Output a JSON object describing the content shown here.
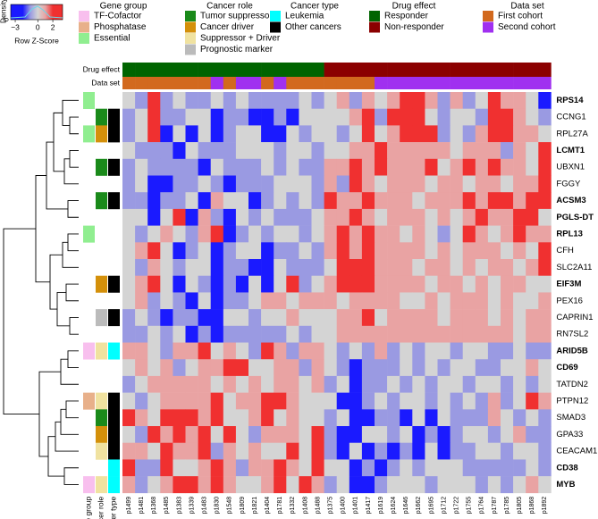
{
  "chart_data": {
    "type": "heatmap",
    "rows": [
      "RPS14",
      "CCNG1",
      "RPL27A",
      "LCMT1",
      "UBXN1",
      "FGGY",
      "ACSM3",
      "PGLS-DT",
      "RPL13",
      "CFH",
      "SLC2A11",
      "EIF3M",
      "PEX16",
      "CAPRIN1",
      "RN7SL2",
      "ARID5B",
      "CD69",
      "TATDN2",
      "PTPN12",
      "SMAD3",
      "GPA33",
      "CEACAM1",
      "CD38",
      "MYB"
    ],
    "row_bold": [
      true,
      false,
      false,
      true,
      false,
      false,
      true,
      true,
      true,
      false,
      false,
      true,
      false,
      false,
      false,
      true,
      true,
      false,
      false,
      false,
      false,
      false,
      true,
      true
    ],
    "columns": [
      "p1499",
      "p1481",
      "p1368",
      "p1485",
      "p1383",
      "p1339",
      "p1483",
      "p1830",
      "p1548",
      "p1809",
      "p1821",
      "p1404",
      "p1781",
      "p1332",
      "p1408",
      "p1488",
      "p1375",
      "p1400",
      "p1401",
      "p1417",
      "p1619",
      "p1624",
      "p1646",
      "p1662",
      "p1695",
      "p1712",
      "p1722",
      "p1755",
      "p1764",
      "p1787",
      "p1785",
      "p1805",
      "p1868",
      "p1892"
    ],
    "values": [
      [
        0,
        -1,
        2,
        -1,
        0,
        -1,
        -1,
        0,
        -1,
        0,
        -1,
        -1,
        -1,
        -1,
        0,
        -1,
        0,
        1,
        -1,
        1,
        0,
        1,
        2,
        2,
        1,
        -1,
        1,
        -1,
        0,
        2,
        1,
        1,
        0,
        -2
      ],
      [
        -1,
        0,
        2,
        -1,
        -1,
        0,
        0,
        -2,
        -1,
        -1,
        -2,
        -2,
        -1,
        -2,
        0,
        0,
        0,
        0,
        1,
        2,
        -1,
        2,
        2,
        2,
        0,
        -1,
        0,
        0,
        -1,
        2,
        2,
        1,
        0,
        -1
      ],
      [
        -1,
        0,
        2,
        -2,
        0,
        -2,
        0,
        -2,
        -1,
        0,
        0,
        -2,
        -2,
        0,
        -1,
        0,
        0,
        -1,
        0,
        2,
        0,
        1,
        2,
        2,
        2,
        -1,
        0,
        -1,
        1,
        2,
        2,
        1,
        1,
        0
      ],
      [
        0,
        -1,
        -1,
        -1,
        -2,
        0,
        -1,
        -1,
        -1,
        0,
        0,
        0,
        -1,
        0,
        0,
        -1,
        0,
        0,
        1,
        1,
        2,
        1,
        1,
        1,
        1,
        1,
        0,
        1,
        1,
        1,
        -1,
        1,
        0,
        2
      ],
      [
        -1,
        0,
        -1,
        -1,
        -1,
        -1,
        -2,
        0,
        -1,
        -1,
        -1,
        0,
        -1,
        0,
        -1,
        -1,
        1,
        1,
        2,
        1,
        2,
        1,
        1,
        1,
        2,
        0,
        1,
        2,
        1,
        2,
        1,
        1,
        0,
        2
      ],
      [
        -1,
        0,
        -2,
        -2,
        -1,
        -1,
        0,
        -1,
        -2,
        -1,
        -1,
        -1,
        0,
        0,
        0,
        -1,
        1,
        -1,
        2,
        1,
        0,
        1,
        1,
        1,
        0,
        1,
        1,
        0,
        1,
        1,
        0,
        1,
        1,
        2
      ],
      [
        -1,
        -1,
        -2,
        -1,
        -1,
        0,
        -2,
        1,
        0,
        0,
        -2,
        -1,
        0,
        -1,
        0,
        -1,
        2,
        1,
        1,
        2,
        1,
        1,
        1,
        0,
        1,
        1,
        1,
        2,
        1,
        2,
        2,
        1,
        2,
        2
      ],
      [
        0,
        0,
        -2,
        0,
        2,
        -2,
        1,
        -1,
        -2,
        0,
        -1,
        0,
        -1,
        -1,
        -1,
        0,
        1,
        1,
        2,
        1,
        0,
        1,
        1,
        1,
        0,
        1,
        0,
        1,
        2,
        1,
        1,
        2,
        2,
        0
      ],
      [
        0,
        -1,
        0,
        1,
        0,
        -1,
        1,
        2,
        -2,
        -1,
        0,
        -1,
        0,
        0,
        -1,
        0,
        1,
        2,
        1,
        2,
        1,
        1,
        0,
        1,
        0,
        -1,
        0,
        2,
        1,
        0,
        1,
        2,
        1,
        1
      ],
      [
        0,
        1,
        2,
        0,
        -2,
        -1,
        0,
        -2,
        -1,
        0,
        0,
        -2,
        -1,
        -1,
        0,
        -1,
        1,
        2,
        1,
        2,
        1,
        1,
        1,
        1,
        0,
        1,
        0,
        1,
        1,
        1,
        0,
        1,
        0,
        2
      ],
      [
        0,
        -1,
        1,
        0,
        -1,
        0,
        0,
        -2,
        -1,
        -1,
        -2,
        -2,
        0,
        -1,
        -1,
        -1,
        0,
        2,
        2,
        2,
        1,
        1,
        1,
        0,
        1,
        1,
        0,
        1,
        0,
        1,
        1,
        0,
        1,
        2
      ],
      [
        0,
        1,
        2,
        0,
        -2,
        0,
        -1,
        -2,
        -1,
        -2,
        0,
        -2,
        0,
        2,
        -1,
        0,
        1,
        2,
        2,
        2,
        1,
        1,
        1,
        1,
        0,
        1,
        1,
        0,
        1,
        0,
        1,
        1,
        0,
        0
      ],
      [
        0,
        1,
        -1,
        0,
        -1,
        -2,
        0,
        -2,
        -1,
        -1,
        0,
        1,
        1,
        0,
        1,
        1,
        1,
        0,
        1,
        1,
        1,
        1,
        0,
        0,
        1,
        0,
        1,
        1,
        1,
        0,
        1,
        0,
        0,
        1
      ],
      [
        -1,
        0,
        -1,
        -2,
        -1,
        -1,
        -2,
        -2,
        0,
        0,
        -1,
        0,
        0,
        1,
        0,
        0,
        0,
        1,
        1,
        2,
        0,
        1,
        1,
        1,
        1,
        0,
        1,
        1,
        1,
        0,
        1,
        0,
        1,
        1
      ],
      [
        -1,
        -1,
        0,
        -1,
        0,
        -2,
        -1,
        -2,
        -1,
        -1,
        -1,
        -1,
        -1,
        0,
        -1,
        0,
        0,
        1,
        1,
        1,
        1,
        1,
        1,
        1,
        1,
        1,
        1,
        1,
        1,
        1,
        1,
        0,
        1,
        1
      ],
      [
        1,
        1,
        0,
        -1,
        1,
        1,
        2,
        0,
        1,
        0,
        -1,
        2,
        1,
        -1,
        1,
        1,
        0,
        -1,
        0,
        -1,
        1,
        -1,
        0,
        -1,
        0,
        0,
        -1,
        0,
        0,
        -1,
        -1,
        0,
        -1,
        -1
      ],
      [
        0,
        1,
        0,
        1,
        -1,
        0,
        1,
        1,
        2,
        2,
        0,
        0,
        1,
        1,
        -1,
        1,
        0,
        -1,
        -2,
        -1,
        -1,
        -1,
        0,
        -1,
        0,
        -1,
        0,
        0,
        -1,
        -1,
        0,
        0,
        1,
        0
      ],
      [
        -1,
        0,
        1,
        1,
        1,
        1,
        1,
        0,
        1,
        0,
        1,
        0,
        1,
        1,
        0,
        1,
        -1,
        0,
        -2,
        -1,
        -1,
        0,
        -1,
        0,
        -1,
        0,
        0,
        -1,
        0,
        0,
        -1,
        0,
        -1,
        0
      ],
      [
        0,
        -1,
        0,
        1,
        1,
        1,
        1,
        2,
        0,
        1,
        1,
        2,
        2,
        1,
        0,
        0,
        0,
        -2,
        -2,
        -1,
        0,
        -1,
        0,
        0,
        -1,
        0,
        -1,
        0,
        -1,
        1,
        -1,
        0,
        2,
        1
      ],
      [
        2,
        1,
        0,
        2,
        2,
        2,
        1,
        2,
        0,
        0,
        1,
        2,
        0,
        1,
        0,
        0,
        -1,
        0,
        -2,
        -2,
        -1,
        -1,
        -2,
        0,
        -2,
        0,
        -1,
        -1,
        -1,
        1,
        0,
        -1,
        0,
        -1
      ],
      [
        0,
        -1,
        2,
        1,
        2,
        1,
        2,
        0,
        2,
        0,
        -1,
        1,
        1,
        1,
        0,
        2,
        -1,
        -2,
        -2,
        0,
        0,
        -1,
        0,
        -2,
        -1,
        -2,
        -1,
        0,
        0,
        -1,
        0,
        1,
        -1,
        -1
      ],
      [
        1,
        1,
        0,
        2,
        1,
        1,
        2,
        -1,
        1,
        0,
        1,
        0,
        0,
        2,
        0,
        2,
        -1,
        -2,
        0,
        -2,
        -1,
        -2,
        -1,
        -2,
        0,
        -2,
        -1,
        -1,
        0,
        0,
        -1,
        0,
        0,
        -1
      ],
      [
        2,
        -1,
        -1,
        2,
        0,
        0,
        1,
        2,
        1,
        -1,
        1,
        1,
        2,
        1,
        0,
        2,
        0,
        0,
        -2,
        -1,
        -2,
        -1,
        0,
        -1,
        0,
        0,
        0,
        -1,
        -1,
        -1,
        -1,
        -1,
        0,
        -1
      ],
      [
        1,
        -1,
        0,
        1,
        2,
        2,
        1,
        2,
        1,
        0,
        0,
        1,
        2,
        0,
        2,
        1,
        -1,
        0,
        -2,
        -2,
        -1,
        0,
        0,
        0,
        -1,
        0,
        0,
        0,
        -1,
        0,
        -1,
        0,
        1,
        0
      ]
    ],
    "color_stops": [
      {
        "value": -2,
        "color": "#1a1aff"
      },
      {
        "value": -1,
        "color": "#9a9ae2"
      },
      {
        "value": 0,
        "color": "#d4d4d4"
      },
      {
        "value": 1,
        "color": "#e9a3a3"
      },
      {
        "value": 2,
        "color": "#f03030"
      }
    ],
    "color_key": {
      "title": "Row Z-Score",
      "ylabel": "Density",
      "yticks": [
        0
      ],
      "xlim": [
        -3.6,
        3.3
      ],
      "xticks": [
        {
          "value": -3,
          "label": "−3"
        },
        0,
        2
      ]
    },
    "legend": [
      {
        "title": "Gene group",
        "items": [
          {
            "name": "TF-Cofactor",
            "color": "#f8bfee"
          },
          {
            "name": "Phosphatase",
            "color": "#e8b08a"
          },
          {
            "name": "Essential",
            "color": "#90ee90"
          }
        ]
      },
      {
        "title": "Cancer role",
        "items": [
          {
            "name": "Tumor suppressor",
            "color": "#1a8a1a"
          },
          {
            "name": "Cancer driver",
            "color": "#d4900a"
          },
          {
            "name": "Suppressor + Driver",
            "color": "#f0e2a0"
          },
          {
            "name": "Prognostic marker",
            "color": "#bbbbbb"
          }
        ]
      },
      {
        "title": "Cancer type",
        "items": [
          {
            "name": "Leukemia",
            "color": "#00ffff"
          },
          {
            "name": "Other cancers",
            "color": "#000000"
          }
        ]
      },
      {
        "title": "Drug effect",
        "items": [
          {
            "name": "Responder",
            "color": "#006400"
          },
          {
            "name": "Non-responder",
            "color": "#8b0000"
          }
        ]
      },
      {
        "title": "Data set",
        "items": [
          {
            "name": "First cohort",
            "color": "#d2691e"
          },
          {
            "name": "Second cohort",
            "color": "#a030f0"
          }
        ]
      }
    ],
    "column_annotations": [
      {
        "name": "Drug effect",
        "values": [
          "Responder",
          "Responder",
          "Responder",
          "Responder",
          "Responder",
          "Responder",
          "Responder",
          "Responder",
          "Responder",
          "Responder",
          "Responder",
          "Responder",
          "Responder",
          "Responder",
          "Responder",
          "Responder",
          "Non-responder",
          "Non-responder",
          "Non-responder",
          "Non-responder",
          "Non-responder",
          "Non-responder",
          "Non-responder",
          "Non-responder",
          "Non-responder",
          "Non-responder",
          "Non-responder",
          "Non-responder",
          "Non-responder",
          "Non-responder",
          "Non-responder",
          "Non-responder",
          "Non-responder",
          "Non-responder"
        ]
      },
      {
        "name": "Data set",
        "values": [
          "First cohort",
          "First cohort",
          "First cohort",
          "First cohort",
          "First cohort",
          "First cohort",
          "First cohort",
          "Second cohort",
          "First cohort",
          "Second cohort",
          "Second cohort",
          "First cohort",
          "Second cohort",
          "First cohort",
          "First cohort",
          "First cohort",
          "First cohort",
          "First cohort",
          "First cohort",
          "First cohort",
          "Second cohort",
          "Second cohort",
          "Second cohort",
          "Second cohort",
          "Second cohort",
          "Second cohort",
          "Second cohort",
          "Second cohort",
          "Second cohort",
          "Second cohort",
          "Second cohort",
          "Second cohort",
          "Second cohort",
          "Second cohort"
        ]
      }
    ],
    "row_annotations": [
      {
        "name": "Gene group",
        "values": [
          "Essential",
          null,
          "Essential",
          null,
          null,
          null,
          null,
          null,
          "Essential",
          null,
          null,
          null,
          null,
          null,
          null,
          "TF-Cofactor",
          null,
          null,
          "Phosphatase",
          null,
          null,
          null,
          null,
          "TF-Cofactor"
        ]
      },
      {
        "name": "Cancer role",
        "values": [
          null,
          "Tumor suppressor",
          "Cancer driver",
          null,
          "Tumor suppressor",
          null,
          "Tumor suppressor",
          null,
          null,
          null,
          null,
          "Cancer driver",
          null,
          "Prognostic marker",
          null,
          "Suppressor + Driver",
          null,
          null,
          "Suppressor + Driver",
          "Tumor suppressor",
          "Cancer driver",
          "Suppressor + Driver",
          null,
          "Suppressor + Driver"
        ]
      },
      {
        "name": "Cancer type",
        "values": [
          null,
          "Other cancers",
          "Other cancers",
          null,
          "Other cancers",
          null,
          "Other cancers",
          null,
          null,
          null,
          null,
          "Other cancers",
          null,
          "Other cancers",
          null,
          "Leukemia",
          null,
          null,
          "Other cancers",
          "Other cancers",
          "Other cancers",
          "Other cancers",
          "Leukemia",
          "Leukemia"
        ]
      }
    ]
  }
}
